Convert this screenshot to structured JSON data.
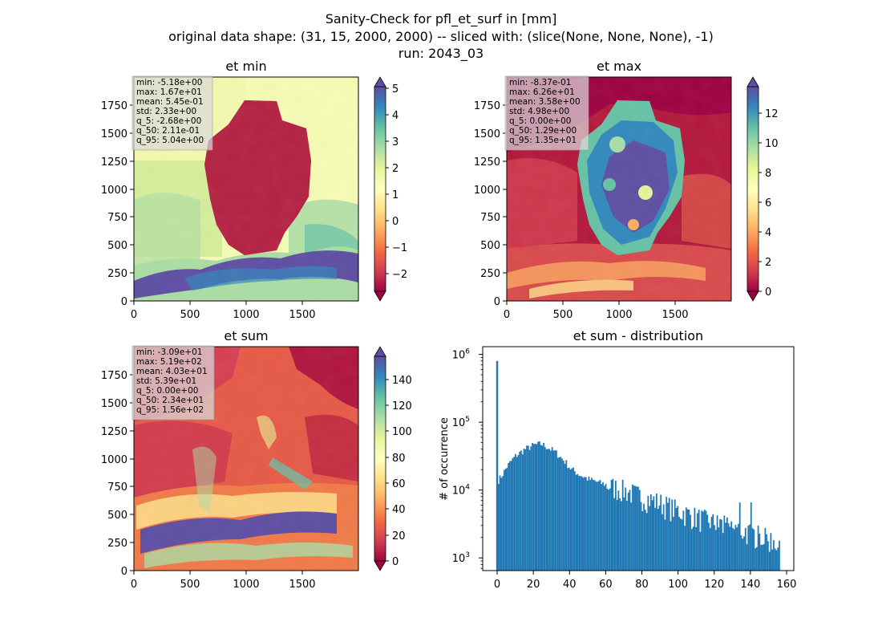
{
  "figure": {
    "title_lines": [
      "Sanity-Check for pfl_et_surf in [mm]",
      "original data shape: (31, 15, 2000, 2000) -- sliced with: (slice(None, None, None), -1)",
      "run: 2043_03"
    ]
  },
  "chart_data": [
    {
      "type": "heatmap",
      "title": "et min",
      "xlim": [
        0,
        2000
      ],
      "ylim": [
        0,
        2000
      ],
      "xticks": [
        "0",
        "500",
        "1000",
        "1500"
      ],
      "yticks": [
        "0",
        "250",
        "500",
        "750",
        "1000",
        "1250",
        "1500",
        "1750"
      ],
      "colormap": "Spectral",
      "colorbar": {
        "range": [
          -2.5,
          5.2
        ],
        "extend": "both",
        "ticks": [
          "−2",
          "−1",
          "0",
          "1",
          "2",
          "3",
          "4",
          "5"
        ]
      },
      "stats": [
        "min: -5.18e+00",
        "max: 1.67e+01",
        "mean: 5.45e-01",
        "std: 2.33e+00",
        "q_5: -2.68e+00",
        "q_50: 2.11e-01",
        "q_95: 5.04e+00"
      ]
    },
    {
      "type": "heatmap",
      "title": "et max",
      "xlim": [
        0,
        2000
      ],
      "ylim": [
        0,
        2000
      ],
      "xticks": [
        "0",
        "500",
        "1000",
        "1500"
      ],
      "yticks": [
        "0",
        "250",
        "500",
        "750",
        "1000",
        "1250",
        "1500",
        "1750"
      ],
      "colormap": "Spectral",
      "colorbar": {
        "range": [
          0,
          13.8
        ],
        "extend": "both",
        "ticks": [
          "0",
          "2",
          "4",
          "6",
          "8",
          "10",
          "12"
        ]
      },
      "stats": [
        "min: -8.37e-01",
        "max: 6.26e+01",
        "mean: 3.58e+00",
        "std: 4.98e+00",
        "q_5: 0.00e+00",
        "q_50: 1.29e+00",
        "q_95: 1.35e+01"
      ]
    },
    {
      "type": "heatmap",
      "title": "et sum",
      "xlim": [
        0,
        2000
      ],
      "ylim": [
        0,
        2000
      ],
      "xticks": [
        "0",
        "500",
        "1000",
        "1500"
      ],
      "yticks": [
        "0",
        "250",
        "500",
        "750",
        "1000",
        "1250",
        "1500",
        "1750"
      ],
      "colormap": "Spectral",
      "colorbar": {
        "range": [
          0,
          158
        ],
        "extend": "both",
        "ticks": [
          "0",
          "20",
          "40",
          "60",
          "80",
          "100",
          "120",
          "140"
        ]
      },
      "stats": [
        "min: -3.09e+01",
        "max: 5.19e+02",
        "mean: 4.03e+01",
        "std: 5.39e+01",
        "q_5: 0.00e+00",
        "q_50: 2.34e+01",
        "q_95: 1.56e+02"
      ]
    },
    {
      "type": "bar",
      "title": "et sum - distribution",
      "ylabel": "# of occurrence",
      "xlabel": "",
      "yscale": "log",
      "xlim": [
        -8,
        164
      ],
      "ylim": [
        650,
        1300000
      ],
      "xticks": [
        0,
        20,
        40,
        60,
        80,
        100,
        120,
        140,
        160
      ],
      "yticks": [
        {
          "exp": "3",
          "value": 1000
        },
        {
          "exp": "4",
          "value": 10000
        },
        {
          "exp": "5",
          "value": 100000
        },
        {
          "exp": "6",
          "value": 1000000
        }
      ],
      "color": "#1f77b4",
      "bin_width": 0.78,
      "spike": {
        "x": 0,
        "count": 800000
      },
      "anchors": [
        [
          0.4,
          14000
        ],
        [
          2,
          16000
        ],
        [
          5,
          22000
        ],
        [
          8,
          28000
        ],
        [
          10,
          32000
        ],
        [
          15,
          40000
        ],
        [
          20,
          46000
        ],
        [
          24,
          48000
        ],
        [
          28,
          42000
        ],
        [
          32,
          36000
        ],
        [
          35,
          30000
        ],
        [
          38,
          25000
        ],
        [
          40,
          21000
        ],
        [
          45,
          17000
        ],
        [
          50,
          14500
        ],
        [
          60,
          12000
        ],
        [
          70,
          10000
        ],
        [
          80,
          8000
        ],
        [
          90,
          6500
        ],
        [
          100,
          5000
        ],
        [
          110,
          4000
        ],
        [
          120,
          3300
        ],
        [
          130,
          2800
        ],
        [
          140,
          2300
        ],
        [
          150,
          1900
        ],
        [
          156,
          1700
        ]
      ]
    }
  ]
}
